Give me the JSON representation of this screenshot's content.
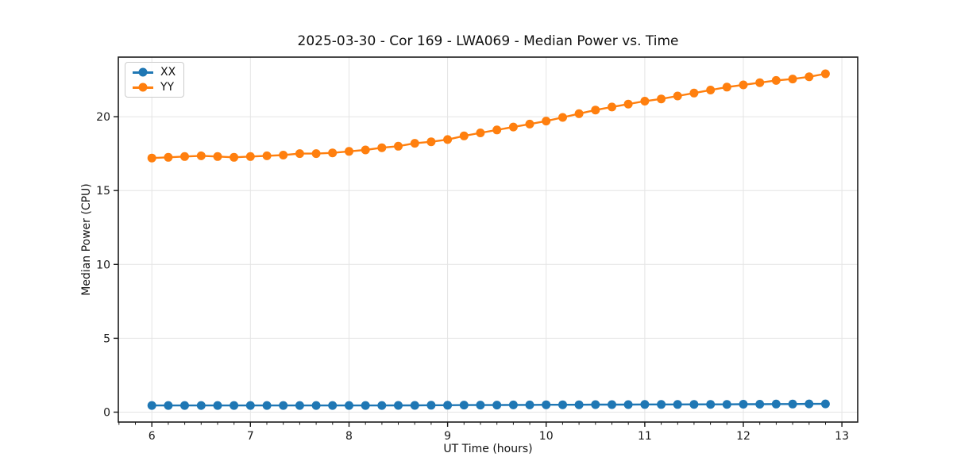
{
  "chart_data": {
    "type": "line",
    "title": "2025-03-30 - Cor 169 - LWA069 - Median Power vs. Time",
    "xlabel": "UT Time (hours)",
    "ylabel": "Median Power (CPU)",
    "xlim": [
      5.66,
      13.16
    ],
    "ylim": [
      -0.67,
      24.03
    ],
    "xticks": [
      6,
      7,
      8,
      9,
      10,
      11,
      12,
      13
    ],
    "yticks": [
      0,
      5,
      10,
      15,
      20
    ],
    "minor_xtick_step": 0.166667,
    "grid": true,
    "legend_position": "upper-left",
    "x": [
      6.0,
      6.167,
      6.333,
      6.5,
      6.667,
      6.833,
      7.0,
      7.167,
      7.333,
      7.5,
      7.667,
      7.833,
      8.0,
      8.167,
      8.333,
      8.5,
      8.667,
      8.833,
      9.0,
      9.167,
      9.333,
      9.5,
      9.667,
      9.833,
      10.0,
      10.167,
      10.333,
      10.5,
      10.667,
      10.833,
      11.0,
      11.167,
      11.333,
      11.5,
      11.667,
      11.833,
      12.0,
      12.167,
      12.333,
      12.5,
      12.667,
      12.833
    ],
    "series": [
      {
        "name": "XX",
        "color": "#1f77b4",
        "values": [
          0.45,
          0.45,
          0.45,
          0.45,
          0.45,
          0.45,
          0.45,
          0.45,
          0.45,
          0.45,
          0.45,
          0.45,
          0.45,
          0.45,
          0.45,
          0.46,
          0.46,
          0.47,
          0.47,
          0.48,
          0.48,
          0.48,
          0.49,
          0.49,
          0.5,
          0.5,
          0.5,
          0.51,
          0.51,
          0.51,
          0.52,
          0.52,
          0.52,
          0.53,
          0.53,
          0.53,
          0.54,
          0.54,
          0.55,
          0.55,
          0.56,
          0.56
        ]
      },
      {
        "name": "YY",
        "color": "#ff7f0e",
        "values": [
          17.2,
          17.25,
          17.3,
          17.35,
          17.3,
          17.25,
          17.3,
          17.35,
          17.4,
          17.5,
          17.5,
          17.55,
          17.65,
          17.75,
          17.9,
          18.0,
          18.2,
          18.3,
          18.45,
          18.7,
          18.9,
          19.1,
          19.3,
          19.5,
          19.7,
          19.95,
          20.2,
          20.45,
          20.65,
          20.85,
          21.05,
          21.2,
          21.4,
          21.6,
          21.8,
          22.0,
          22.15,
          22.3,
          22.45,
          22.55,
          22.7,
          22.9
        ]
      }
    ],
    "style": {
      "grid_color": "#e4e4e4",
      "spine_color": "#1a1a1a",
      "tick_label_color": "#1a1a1a",
      "marker_radius": 5.5,
      "line_width": 2.4
    }
  }
}
